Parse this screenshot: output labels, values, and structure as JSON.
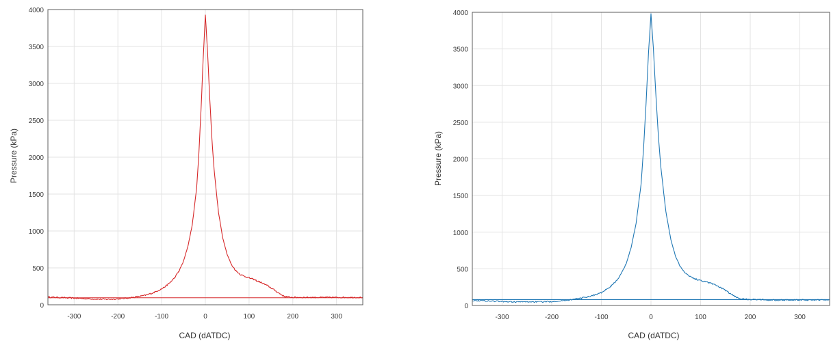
{
  "chart_data": [
    {
      "type": "line",
      "title": "",
      "xlabel": "CAD (dATDC)",
      "ylabel": "Pressure (kPa)",
      "xlim": [
        -360,
        360
      ],
      "ylim": [
        0,
        4000
      ],
      "xticks": [
        -300,
        -200,
        -100,
        0,
        100,
        200,
        300
      ],
      "yticks": [
        0,
        500,
        1000,
        1500,
        2000,
        2500,
        3000,
        3500,
        4000
      ],
      "grid": true,
      "line_color": "#d62728",
      "series": [
        {
          "x": [
            -360,
            -340,
            -320,
            -300,
            -280,
            -260,
            -240,
            -220,
            -200,
            -180,
            -160,
            -140,
            -120,
            -100,
            -90,
            -80,
            -70,
            -60,
            -50,
            -40,
            -30,
            -20,
            -15,
            -10,
            -5,
            0,
            5,
            10,
            15,
            20,
            30,
            40,
            50,
            60,
            70,
            80,
            90,
            100,
            110,
            120,
            130,
            140,
            150,
            160,
            170,
            180,
            190,
            200,
            220,
            240,
            260,
            280,
            300,
            320,
            340,
            360
          ],
          "y": [
            105,
            100,
            95,
            90,
            85,
            80,
            75,
            75,
            80,
            90,
            105,
            125,
            160,
            215,
            255,
            305,
            370,
            460,
            590,
            790,
            1080,
            1580,
            2030,
            2630,
            3330,
            3930,
            3430,
            2800,
            2250,
            1830,
            1250,
            900,
            680,
            540,
            460,
            410,
            385,
            365,
            345,
            320,
            295,
            265,
            230,
            190,
            150,
            115,
            105,
            100,
            100,
            100,
            100,
            100,
            100,
            100,
            100,
            100
          ]
        }
      ],
      "reference_y": 95
    },
    {
      "type": "line",
      "title": "",
      "xlabel": "CAD (dATDC)",
      "ylabel": "Pressure (kPa)",
      "xlim": [
        -360,
        360
      ],
      "ylim": [
        0,
        4000
      ],
      "xticks": [
        -300,
        -200,
        -100,
        0,
        100,
        200,
        300
      ],
      "yticks": [
        0,
        500,
        1000,
        1500,
        2000,
        2500,
        3000,
        3500,
        4000
      ],
      "grid": true,
      "line_color": "#1f77b4",
      "series": [
        {
          "x": [
            -360,
            -340,
            -320,
            -300,
            -280,
            -260,
            -240,
            -220,
            -200,
            -180,
            -160,
            -140,
            -120,
            -100,
            -90,
            -80,
            -70,
            -60,
            -50,
            -40,
            -30,
            -20,
            -15,
            -10,
            -5,
            0,
            5,
            10,
            15,
            20,
            30,
            40,
            50,
            60,
            70,
            80,
            90,
            100,
            110,
            120,
            130,
            140,
            150,
            160,
            170,
            180,
            190,
            200,
            220,
            240,
            260,
            280,
            300,
            320,
            340,
            360
          ],
          "y": [
            70,
            65,
            60,
            55,
            50,
            50,
            50,
            50,
            55,
            65,
            80,
            100,
            130,
            175,
            215,
            265,
            335,
            430,
            570,
            790,
            1120,
            1650,
            2130,
            2750,
            3450,
            3980,
            3500,
            2850,
            2300,
            1880,
            1280,
            900,
            660,
            520,
            440,
            390,
            360,
            340,
            325,
            305,
            280,
            245,
            205,
            160,
            120,
            95,
            85,
            80,
            80,
            75,
            75,
            75,
            75,
            75,
            75,
            75
          ]
        }
      ],
      "reference_y": 80
    }
  ]
}
